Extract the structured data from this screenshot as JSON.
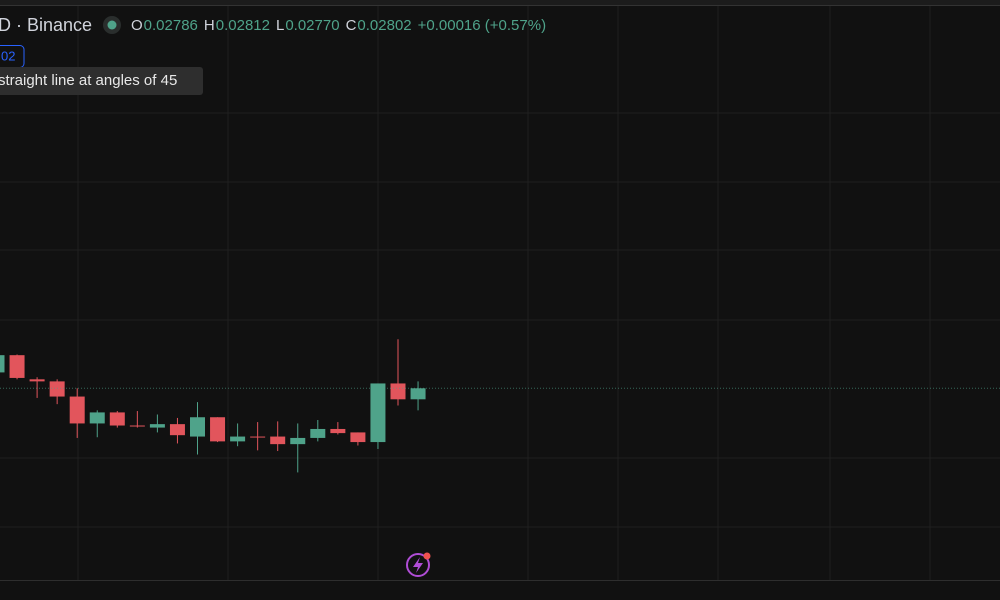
{
  "header": {
    "symbol": "D · Binance",
    "ohlc": [
      {
        "label": "O",
        "value": "0.02786"
      },
      {
        "label": "H",
        "value": "0.02812"
      },
      {
        "label": "L",
        "value": "0.02770"
      },
      {
        "label": "C",
        "value": "0.02802"
      }
    ],
    "change": "+0.00016 (+0.57%)"
  },
  "badge": "02",
  "tooltip": "straight line at angles of 45",
  "chart_data": {
    "type": "candlestick",
    "open": [
      0.02825,
      0.0285,
      0.02815,
      0.02812,
      0.0279,
      0.02751,
      0.02767,
      0.02748,
      0.02745,
      0.0275,
      0.02732,
      0.0276,
      0.02725,
      0.02732,
      0.02732,
      0.02721,
      0.0273,
      0.02743,
      0.02738,
      0.02724,
      0.02809,
      0.02786
    ],
    "high": [
      0.02854,
      0.02851,
      0.02818,
      0.02815,
      0.02802,
      0.0277,
      0.02769,
      0.02769,
      0.02764,
      0.02759,
      0.02782,
      0.0276,
      0.02751,
      0.02753,
      0.02754,
      0.02751,
      0.02756,
      0.02753,
      0.02738,
      0.02809,
      0.02873,
      0.02812
    ],
    "low": [
      0.02825,
      0.02815,
      0.02788,
      0.02779,
      0.0273,
      0.02731,
      0.02745,
      0.02745,
      0.02738,
      0.02722,
      0.02706,
      0.02724,
      0.02718,
      0.02712,
      0.02711,
      0.0268,
      0.02725,
      0.02735,
      0.02719,
      0.02714,
      0.02777,
      0.0277
    ],
    "close": [
      0.0285,
      0.02817,
      0.02812,
      0.0279,
      0.02751,
      0.02767,
      0.02748,
      0.02747,
      0.0275,
      0.02734,
      0.0276,
      0.02725,
      0.02732,
      0.02731,
      0.02721,
      0.0273,
      0.02743,
      0.02737,
      0.02724,
      0.02809,
      0.02786,
      0.02802
    ],
    "up_color": "#4fa38a",
    "down_color": "#e2555c",
    "ylim": [
      0.02524,
      0.03365
    ]
  }
}
